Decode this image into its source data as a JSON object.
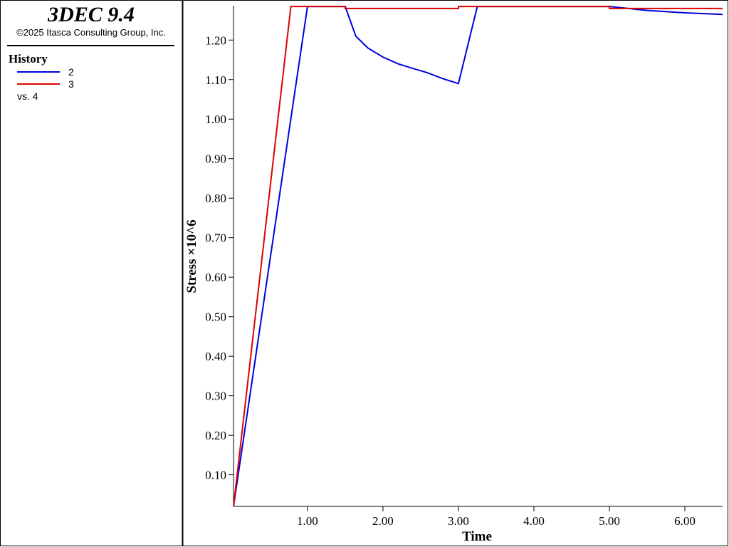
{
  "chart_data": {
    "type": "line",
    "title": "3DEC 9.4",
    "subtitle": "©2025 Itasca Consulting Group, Inc.",
    "legend_title": "History",
    "x_series_label": "vs. 4",
    "x_label": "Time",
    "y_label": "Stress ×10^6",
    "xlim": [
      0.02,
      6.5
    ],
    "ylim": [
      0.02,
      1.287
    ],
    "xticks": [
      {
        "value": 1,
        "label": "1.00"
      },
      {
        "value": 2,
        "label": "2.00"
      },
      {
        "value": 3,
        "label": "3.00"
      },
      {
        "value": 4,
        "label": "4.00"
      },
      {
        "value": 5,
        "label": "5.00"
      },
      {
        "value": 6,
        "label": "6.00"
      }
    ],
    "yticks": [
      {
        "value": 0.1,
        "label": "0.10"
      },
      {
        "value": 0.2,
        "label": "0.20"
      },
      {
        "value": 0.3,
        "label": "0.30"
      },
      {
        "value": 0.4,
        "label": "0.40"
      },
      {
        "value": 0.5,
        "label": "0.50"
      },
      {
        "value": 0.6,
        "label": "0.60"
      },
      {
        "value": 0.7,
        "label": "0.70"
      },
      {
        "value": 0.8,
        "label": "0.80"
      },
      {
        "value": 0.9,
        "label": "0.90"
      },
      {
        "value": 1.0,
        "label": "1.00"
      },
      {
        "value": 1.1,
        "label": "1.10"
      },
      {
        "value": 1.2,
        "label": "1.20"
      }
    ],
    "series": [
      {
        "name": "2",
        "color": "#0000dd",
        "x": [
          0.02,
          1.0,
          1.5,
          1.64,
          1.8,
          2.0,
          2.2,
          2.4,
          2.58,
          2.8,
          3.0,
          3.25,
          5.0,
          5.5,
          6.0,
          6.5
        ],
        "values": [
          0.02,
          1.285,
          1.285,
          1.21,
          1.18,
          1.157,
          1.14,
          1.128,
          1.118,
          1.102,
          1.09,
          1.285,
          1.285,
          1.275,
          1.269,
          1.265
        ]
      },
      {
        "name": "3",
        "color": "#dd0000",
        "x": [
          0.02,
          0.78,
          1.5,
          1.5,
          3.0,
          3.0,
          5.0,
          5.0,
          6.5
        ],
        "values": [
          0.02,
          1.285,
          1.285,
          1.28,
          1.28,
          1.285,
          1.285,
          1.28,
          1.28
        ]
      }
    ]
  }
}
